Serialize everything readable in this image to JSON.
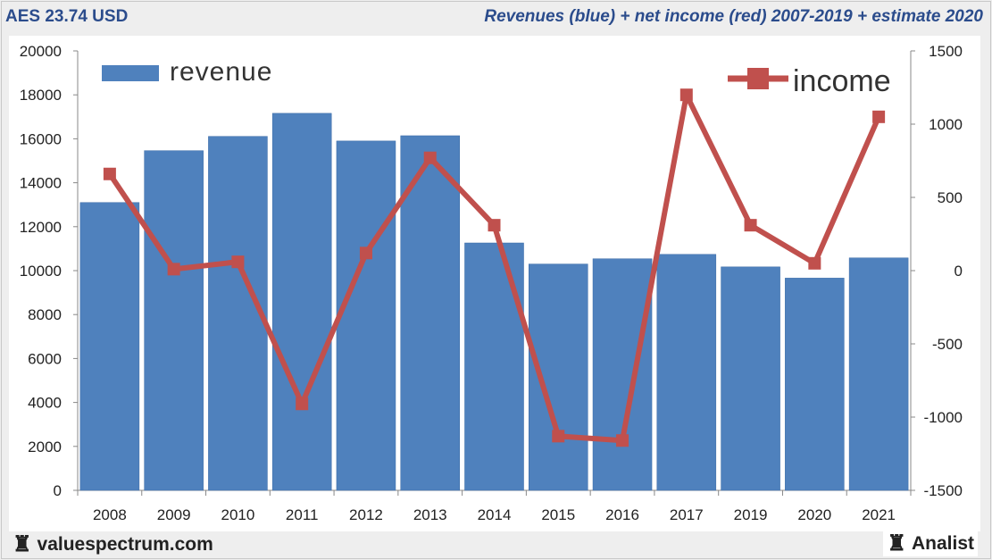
{
  "header": {
    "ticker": "AES 23.74 USD",
    "title": "Revenues (blue) + net income (red) 2007-2019 + estimate 2020"
  },
  "footer": {
    "brand": "valuespectrum.com",
    "brand_icon": "rook-icon",
    "analist": "Analist",
    "analist_icon": "rook-icon"
  },
  "colors": {
    "revenue": "#4f81bd",
    "income": "#c0504d"
  },
  "chart_data": {
    "type": "bar",
    "categories": [
      "2008",
      "2009",
      "2010",
      "2011",
      "2012",
      "2013",
      "2014",
      "2015",
      "2016",
      "2017",
      "2019",
      "2020",
      "2021"
    ],
    "series": [
      {
        "name": "revenue",
        "type": "bar",
        "axis": "left",
        "values": [
          13100,
          15460,
          16110,
          17160,
          15900,
          16140,
          11260,
          10300,
          10540,
          10740,
          10170,
          9660,
          10580
        ]
      },
      {
        "name": "income",
        "type": "line",
        "axis": "right",
        "values": [
          660,
          10,
          60,
          -910,
          120,
          770,
          310,
          -1130,
          -1160,
          1200,
          310,
          50,
          1050
        ]
      }
    ],
    "y_left": {
      "min": 0,
      "max": 20000,
      "ticks": [
        0,
        2000,
        4000,
        6000,
        8000,
        10000,
        12000,
        14000,
        16000,
        18000,
        20000
      ]
    },
    "y_right": {
      "min": -1500,
      "max": 1500,
      "ticks": [
        -1500,
        -1000,
        -500,
        0,
        500,
        1000,
        1500
      ]
    },
    "legend": {
      "revenue_position": "top-left",
      "income_position": "top-right"
    },
    "grid": false
  }
}
